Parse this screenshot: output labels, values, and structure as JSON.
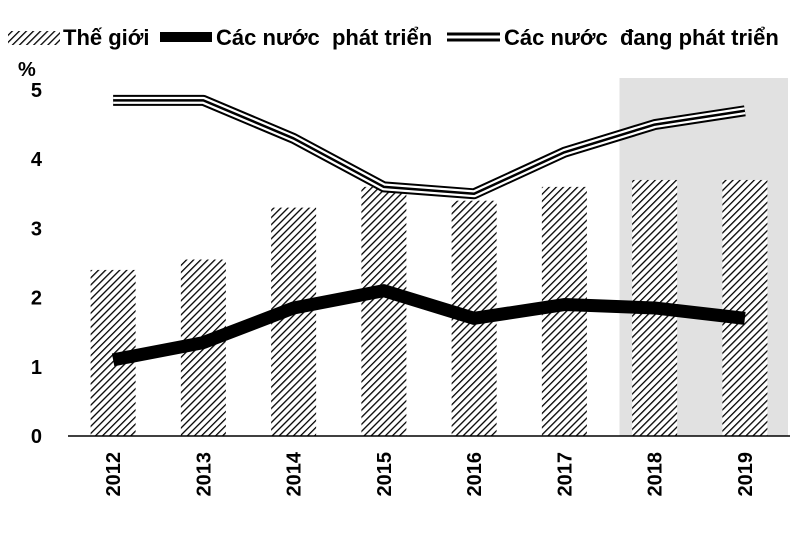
{
  "chart_data": {
    "type": "bar",
    "title": "",
    "ylabel": "%",
    "xlabel": "",
    "ylim": [
      0,
      5
    ],
    "yticks": [
      0,
      1,
      2,
      3,
      4,
      5
    ],
    "grid": false,
    "legend_position": "top",
    "categories": [
      "2012",
      "2013",
      "2014",
      "2015",
      "2016",
      "2017",
      "2018",
      "2019"
    ],
    "highlighted_categories": [
      "2018",
      "2019"
    ],
    "series": [
      {
        "name": "Thế giới",
        "kind": "bar",
        "style": "hatched",
        "values": [
          2.4,
          2.55,
          3.3,
          3.6,
          3.4,
          3.6,
          3.7,
          3.7
        ]
      },
      {
        "name": "Các nước  phát triển",
        "kind": "line",
        "style": "thick-black",
        "values": [
          1.1,
          1.35,
          1.85,
          2.1,
          1.7,
          1.9,
          1.85,
          1.7
        ]
      },
      {
        "name": "Các nước  đang phát triển",
        "kind": "line",
        "style": "double-outline",
        "values": [
          4.85,
          4.85,
          4.3,
          3.6,
          3.5,
          4.1,
          4.5,
          4.7
        ]
      }
    ]
  }
}
